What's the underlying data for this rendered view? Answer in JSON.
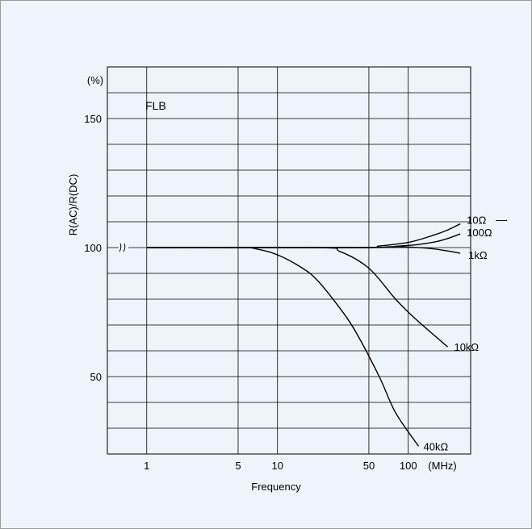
{
  "chart_data": {
    "type": "line",
    "title": "",
    "panel_label": "FLB",
    "xlabel": "Frequency",
    "ylabel": "R(AC)/R(DC)",
    "x_unit": "(MHz)",
    "y_unit": "(%)",
    "x_scale": "log",
    "xlim": [
      0.5,
      300
    ],
    "ylim": [
      20,
      170
    ],
    "x_ticks": [
      {
        "value": 1,
        "label": "1"
      },
      {
        "value": 5,
        "label": "5"
      },
      {
        "value": 10,
        "label": "10"
      },
      {
        "value": 50,
        "label": "50"
      },
      {
        "value": 100,
        "label": "100"
      }
    ],
    "y_ticks": [
      {
        "value": 50,
        "label": "50"
      },
      {
        "value": 100,
        "label": "100"
      },
      {
        "value": 150,
        "label": "150"
      }
    ],
    "y_grid_step": 10,
    "y_axis_break_at": 100,
    "grid": true,
    "series": [
      {
        "name": "10Ω",
        "x": [
          1,
          40,
          60,
          100,
          150,
          200,
          250
        ],
        "y": [
          100,
          100,
          100.6,
          102,
          104.5,
          106.8,
          109.2
        ]
      },
      {
        "name": "100Ω",
        "x": [
          1,
          50,
          80,
          120,
          160,
          200,
          250
        ],
        "y": [
          100,
          100,
          100.5,
          101.2,
          102.2,
          103.5,
          105.3
        ]
      },
      {
        "name": "1kΩ",
        "x": [
          1,
          40,
          70,
          100,
          150,
          200,
          250
        ],
        "y": [
          100,
          100,
          100.3,
          100.2,
          99.6,
          98.7,
          97.8
        ]
      },
      {
        "name": "10kΩ",
        "x": [
          1,
          20,
          30,
          50,
          80,
          110,
          150,
          200
        ],
        "y": [
          100,
          100,
          98.5,
          92,
          80,
          73,
          67,
          61.5
        ]
      },
      {
        "name": "40kΩ",
        "x": [
          1,
          5,
          7,
          10,
          15,
          20,
          30,
          40,
          60,
          80,
          120
        ],
        "y": [
          100,
          100,
          99.4,
          97.2,
          92.5,
          87.5,
          76.5,
          67,
          50,
          36,
          23
        ]
      }
    ]
  }
}
